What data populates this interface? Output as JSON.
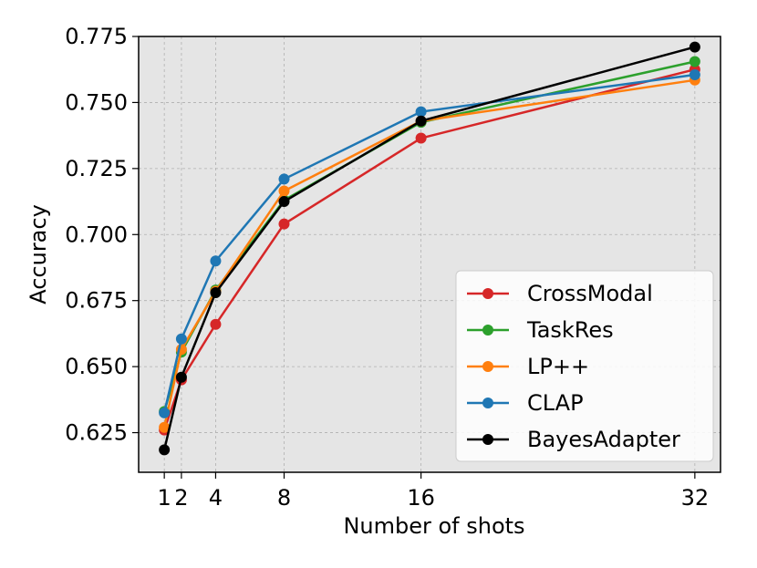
{
  "chart_data": {
    "type": "line",
    "title": "",
    "xlabel": "Number of shots",
    "ylabel": "Accuracy",
    "x": [
      1,
      2,
      4,
      8,
      16,
      32
    ],
    "xticks": [
      "1",
      "2",
      "4",
      "8",
      "16",
      "32"
    ],
    "xlim": [
      -0.5,
      33.5
    ],
    "ylim": [
      0.61,
      0.775
    ],
    "yticks": [
      "0.625",
      "0.650",
      "0.675",
      "0.700",
      "0.725",
      "0.750",
      "0.775"
    ],
    "ytick_values": [
      0.625,
      0.65,
      0.675,
      0.7,
      0.725,
      0.75,
      0.775
    ],
    "grid": true,
    "legend_position": "lower-right",
    "series": [
      {
        "name": "CrossModal",
        "color": "#d62728",
        "values": [
          0.626,
          0.645,
          0.666,
          0.704,
          0.7365,
          0.7625
        ]
      },
      {
        "name": "TaskRes",
        "color": "#2ca02c",
        "values": [
          0.633,
          0.6555,
          0.679,
          0.713,
          0.7425,
          0.7655
        ]
      },
      {
        "name": "LP++",
        "color": "#ff7f0e",
        "values": [
          0.627,
          0.6565,
          0.6785,
          0.7165,
          0.743,
          0.7585
        ]
      },
      {
        "name": "CLAP",
        "color": "#1f77b4",
        "values": [
          0.6325,
          0.6605,
          0.69,
          0.721,
          0.7465,
          0.7605
        ]
      },
      {
        "name": "BayesAdapter",
        "color": "#000000",
        "values": [
          0.6185,
          0.646,
          0.678,
          0.7125,
          0.743,
          0.771
        ]
      }
    ]
  }
}
